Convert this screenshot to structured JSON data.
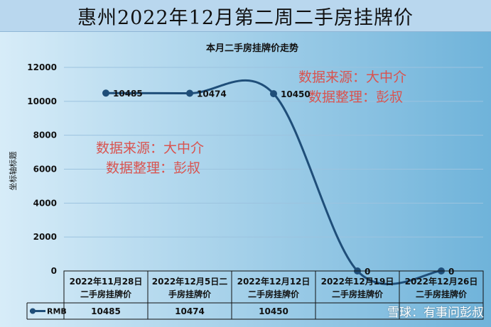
{
  "header": {
    "title": "惠州2022年12月第二周二手房挂牌价"
  },
  "chart_data": {
    "type": "line",
    "title": "本月二手房挂牌价走势",
    "ylabel": "坐标轴标题",
    "xlabel": "",
    "ylim": [
      0,
      12000
    ],
    "yticks": [
      0,
      2000,
      4000,
      6000,
      8000,
      10000,
      12000
    ],
    "categories": [
      [
        "2022年11月28日",
        "二手房挂牌价"
      ],
      [
        "2022年12月5日二",
        "手房挂牌价"
      ],
      [
        "2022年12月12日",
        "二手房挂牌价"
      ],
      [
        "2022年12月19日",
        "二手房挂牌价"
      ],
      [
        "2022年12月26日",
        "二手房挂牌价"
      ]
    ],
    "series": [
      {
        "name": "RMB",
        "values": [
          10485,
          10474,
          10450,
          0,
          0
        ],
        "color": "#1f4e79"
      }
    ],
    "data_labels": [
      "10485",
      "10474",
      "10450",
      "0",
      "0"
    ],
    "table_values": [
      "10485",
      "10474",
      "10450",
      "",
      ""
    ],
    "smooth": true,
    "grid": true,
    "legend": "data-table-left",
    "watermarks": [
      {
        "line1": "数据来源：大中介",
        "line2": "数据整理：彭叔"
      },
      {
        "line1": "数据来源：大中介",
        "line2": "数据整理：彭叔"
      }
    ],
    "colors": {
      "bg_left": "#d7ecf8",
      "bg_right": "#6fb3da",
      "watermark": "#d9534f"
    }
  },
  "footer": {
    "brand": "雪球：有事问彭叔"
  }
}
